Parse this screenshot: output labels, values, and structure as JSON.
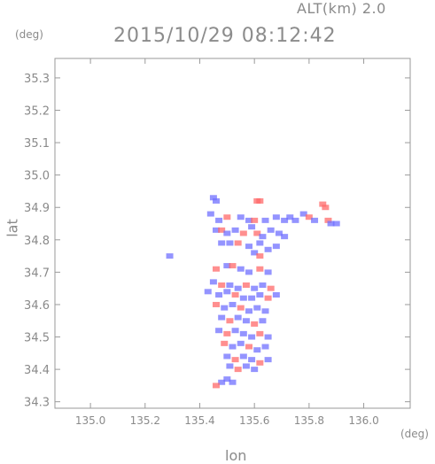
{
  "header": {
    "alt_label": "ALT(km) 2.0",
    "datetime": "2015/10/29 08:12:42",
    "y_unit": "(deg)",
    "x_unit": "(deg)"
  },
  "chart_data": {
    "type": "heatmap",
    "title": "2015/10/29 08:12:42",
    "xlabel": "lon",
    "ylabel": "lat",
    "xlim": [
      134.87,
      136.17
    ],
    "ylim": [
      34.28,
      35.36
    ],
    "xticks": [
      "135.0",
      "135.2",
      "135.4",
      "135.6",
      "135.8",
      "136.0"
    ],
    "yticks": [
      "34.3",
      "34.4",
      "34.5",
      "34.6",
      "34.7",
      "34.8",
      "34.9",
      "35.0",
      "35.1",
      "35.2",
      "35.3"
    ],
    "colors": {
      "positive": "#ff6a6a",
      "negative": "#7070ff",
      "axis": "#9a9a9a"
    },
    "points": [
      [
        135.45,
        34.93,
        -1
      ],
      [
        135.46,
        34.92,
        -1
      ],
      [
        135.61,
        34.92,
        1
      ],
      [
        135.62,
        34.92,
        1
      ],
      [
        135.44,
        34.88,
        -1
      ],
      [
        135.47,
        34.86,
        -1
      ],
      [
        135.5,
        34.87,
        1
      ],
      [
        135.55,
        34.87,
        -1
      ],
      [
        135.58,
        34.86,
        -1
      ],
      [
        135.6,
        34.86,
        1
      ],
      [
        135.64,
        34.86,
        -1
      ],
      [
        135.68,
        34.87,
        -1
      ],
      [
        135.71,
        34.86,
        -1
      ],
      [
        135.73,
        34.87,
        -1
      ],
      [
        135.75,
        34.86,
        -1
      ],
      [
        135.78,
        34.88,
        -1
      ],
      [
        135.8,
        34.87,
        1
      ],
      [
        135.82,
        34.86,
        -1
      ],
      [
        135.85,
        34.91,
        1
      ],
      [
        135.86,
        34.9,
        1
      ],
      [
        135.87,
        34.86,
        1
      ],
      [
        135.88,
        34.85,
        -1
      ],
      [
        135.9,
        34.85,
        -1
      ],
      [
        135.46,
        34.83,
        -1
      ],
      [
        135.48,
        34.83,
        1
      ],
      [
        135.5,
        34.82,
        -1
      ],
      [
        135.53,
        34.83,
        -1
      ],
      [
        135.56,
        34.82,
        1
      ],
      [
        135.59,
        34.84,
        -1
      ],
      [
        135.61,
        34.82,
        1
      ],
      [
        135.63,
        34.81,
        -1
      ],
      [
        135.66,
        34.83,
        -1
      ],
      [
        135.69,
        34.82,
        -1
      ],
      [
        135.71,
        34.81,
        -1
      ],
      [
        135.48,
        34.79,
        -1
      ],
      [
        135.51,
        34.79,
        -1
      ],
      [
        135.54,
        34.79,
        1
      ],
      [
        135.58,
        34.78,
        -1
      ],
      [
        135.62,
        34.79,
        -1
      ],
      [
        135.65,
        34.77,
        -1
      ],
      [
        135.68,
        34.78,
        -1
      ],
      [
        135.6,
        34.76,
        -1
      ],
      [
        135.62,
        34.75,
        1
      ],
      [
        135.29,
        34.75,
        -1
      ],
      [
        135.46,
        34.71,
        1
      ],
      [
        135.5,
        34.72,
        -1
      ],
      [
        135.52,
        34.72,
        1
      ],
      [
        135.55,
        34.71,
        -1
      ],
      [
        135.58,
        34.7,
        -1
      ],
      [
        135.62,
        34.71,
        1
      ],
      [
        135.65,
        34.7,
        -1
      ],
      [
        135.45,
        34.67,
        -1
      ],
      [
        135.48,
        34.66,
        1
      ],
      [
        135.51,
        34.66,
        -1
      ],
      [
        135.54,
        34.65,
        -1
      ],
      [
        135.57,
        34.66,
        1
      ],
      [
        135.6,
        34.65,
        -1
      ],
      [
        135.63,
        34.66,
        -1
      ],
      [
        135.66,
        34.65,
        1
      ],
      [
        135.43,
        34.64,
        -1
      ],
      [
        135.47,
        34.63,
        -1
      ],
      [
        135.5,
        34.64,
        -1
      ],
      [
        135.53,
        34.63,
        1
      ],
      [
        135.56,
        34.62,
        -1
      ],
      [
        135.59,
        34.62,
        -1
      ],
      [
        135.62,
        34.63,
        -1
      ],
      [
        135.65,
        34.62,
        1
      ],
      [
        135.68,
        34.63,
        -1
      ],
      [
        135.46,
        34.6,
        1
      ],
      [
        135.49,
        34.59,
        -1
      ],
      [
        135.52,
        34.6,
        -1
      ],
      [
        135.55,
        34.59,
        1
      ],
      [
        135.58,
        34.58,
        -1
      ],
      [
        135.61,
        34.59,
        -1
      ],
      [
        135.64,
        34.58,
        -1
      ],
      [
        135.48,
        34.56,
        -1
      ],
      [
        135.51,
        34.55,
        1
      ],
      [
        135.54,
        34.56,
        -1
      ],
      [
        135.57,
        34.55,
        -1
      ],
      [
        135.6,
        34.54,
        1
      ],
      [
        135.63,
        34.55,
        -1
      ],
      [
        135.47,
        34.52,
        -1
      ],
      [
        135.5,
        34.51,
        1
      ],
      [
        135.53,
        34.52,
        -1
      ],
      [
        135.56,
        34.51,
        -1
      ],
      [
        135.59,
        34.5,
        -1
      ],
      [
        135.62,
        34.51,
        1
      ],
      [
        135.65,
        34.5,
        -1
      ],
      [
        135.49,
        34.48,
        1
      ],
      [
        135.52,
        34.47,
        -1
      ],
      [
        135.55,
        34.48,
        -1
      ],
      [
        135.58,
        34.47,
        1
      ],
      [
        135.61,
        34.46,
        -1
      ],
      [
        135.64,
        34.47,
        -1
      ],
      [
        135.5,
        34.44,
        -1
      ],
      [
        135.53,
        34.43,
        1
      ],
      [
        135.56,
        34.44,
        -1
      ],
      [
        135.59,
        34.43,
        -1
      ],
      [
        135.62,
        34.42,
        1
      ],
      [
        135.65,
        34.43,
        -1
      ],
      [
        135.51,
        34.41,
        -1
      ],
      [
        135.54,
        34.4,
        1
      ],
      [
        135.57,
        34.41,
        -1
      ],
      [
        135.6,
        34.4,
        -1
      ],
      [
        135.5,
        34.37,
        -1
      ],
      [
        135.48,
        34.36,
        -1
      ],
      [
        135.46,
        34.35,
        1
      ],
      [
        135.52,
        34.36,
        -1
      ]
    ]
  }
}
